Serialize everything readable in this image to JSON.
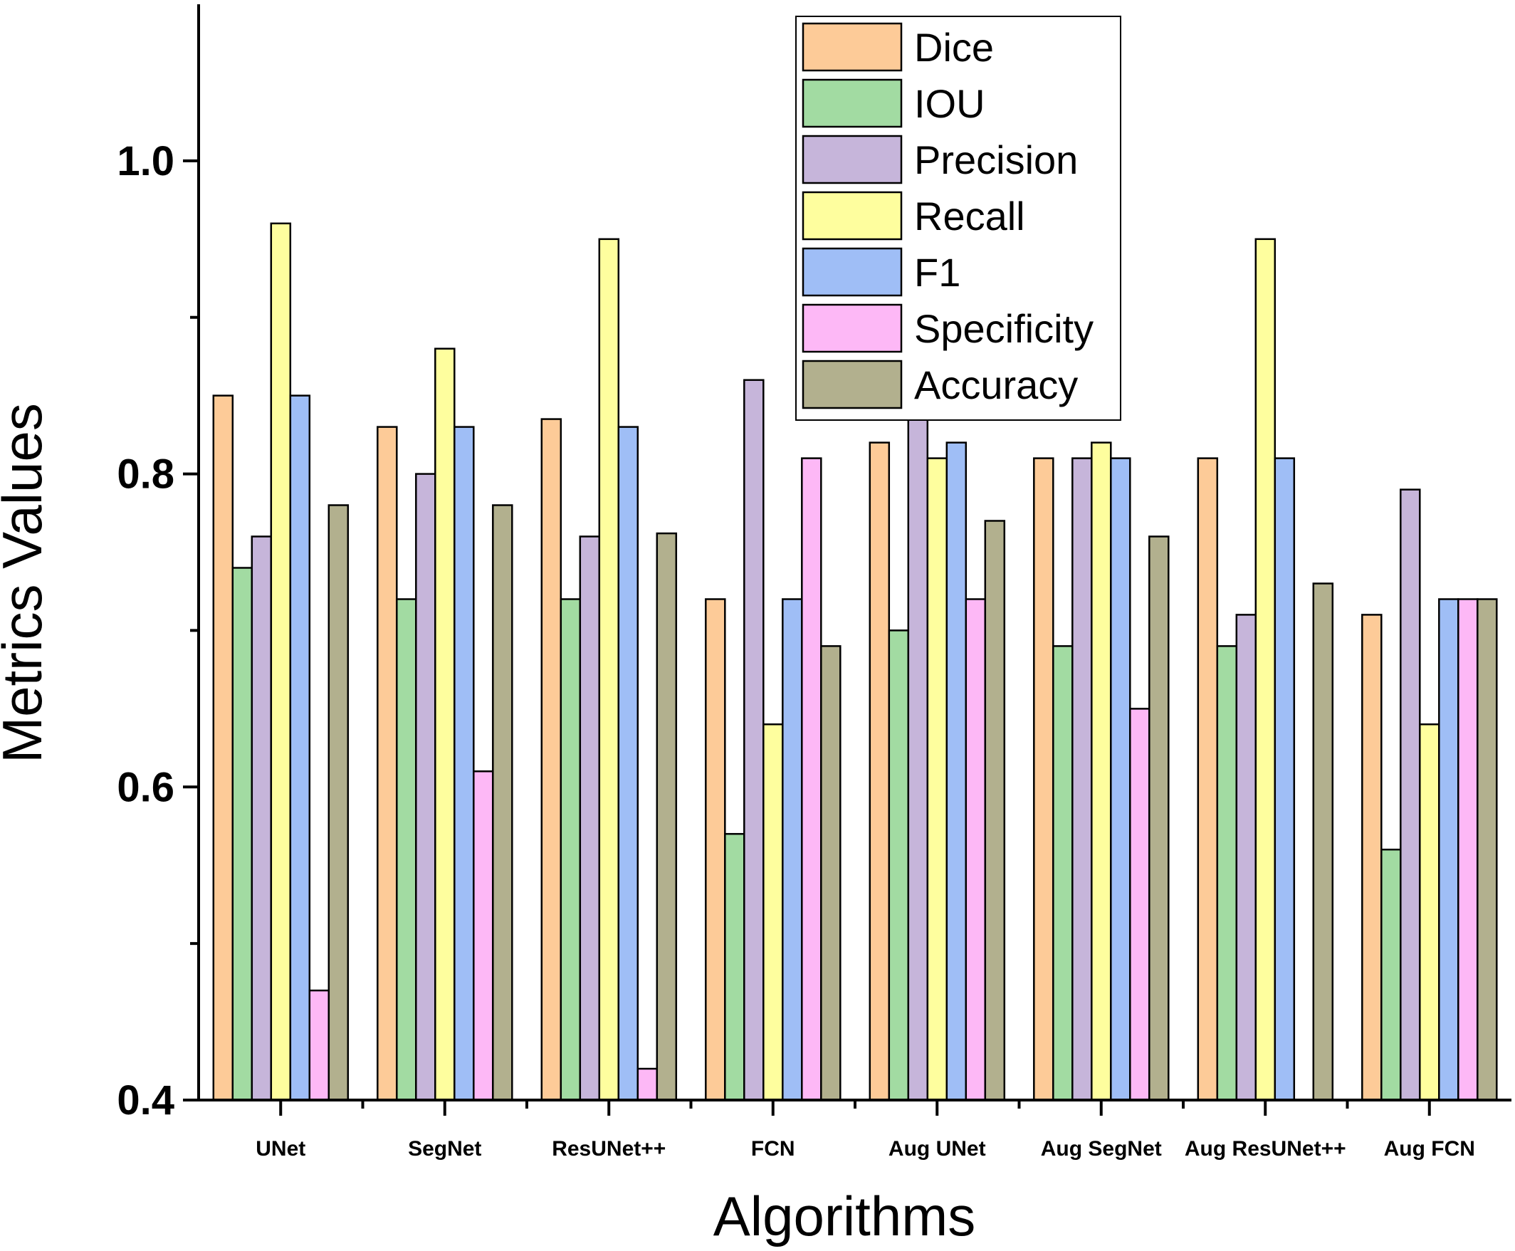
{
  "chart_data": {
    "type": "bar",
    "title": "",
    "xlabel": "Algorithms",
    "ylabel": "Metrics Values",
    "ylim": [
      0.4,
      1.1
    ],
    "yticks": [
      0.4,
      0.6,
      0.8,
      1.0
    ],
    "ytick_labels": [
      "0.4",
      "0.6",
      "0.8",
      "1.0"
    ],
    "minor_yticks": [
      0.5,
      0.7,
      0.9
    ],
    "grid": false,
    "legend_position": "top-center",
    "categories": [
      "UNet",
      "SegNet",
      "ResUNet++",
      "FCN",
      "Aug UNet",
      "Aug SegNet",
      "Aug ResUNet++",
      "Aug FCN"
    ],
    "series": [
      {
        "name": "Dice",
        "color": "#FDCB98",
        "values": [
          0.85,
          0.83,
          0.835,
          0.72,
          0.82,
          0.81,
          0.81,
          0.71
        ]
      },
      {
        "name": "IOU",
        "color": "#A2DBA2",
        "values": [
          0.74,
          0.72,
          0.72,
          0.57,
          0.7,
          0.69,
          0.69,
          0.56
        ]
      },
      {
        "name": "Precision",
        "color": "#C6B5DA",
        "values": [
          0.76,
          0.8,
          0.76,
          0.86,
          0.84,
          0.81,
          0.71,
          0.79
        ]
      },
      {
        "name": "Recall",
        "color": "#FEFE9E",
        "values": [
          0.96,
          0.88,
          0.95,
          0.64,
          0.81,
          0.82,
          0.95,
          0.64
        ]
      },
      {
        "name": "F1",
        "color": "#9FBEF6",
        "values": [
          0.85,
          0.83,
          0.83,
          0.72,
          0.82,
          0.81,
          0.81,
          0.72
        ]
      },
      {
        "name": "Specificity",
        "color": "#FDB8F6",
        "values": [
          0.47,
          0.61,
          0.42,
          0.81,
          0.72,
          0.65,
          0.4,
          0.72
        ]
      },
      {
        "name": "Accuracy",
        "color": "#B2B08E",
        "values": [
          0.78,
          0.78,
          0.762,
          0.69,
          0.77,
          0.76,
          0.73,
          0.72
        ]
      }
    ]
  }
}
